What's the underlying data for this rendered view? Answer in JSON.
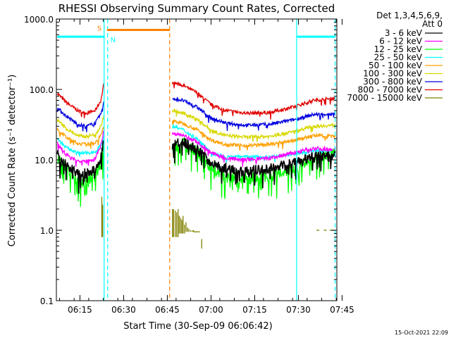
{
  "chart_data": {
    "type": "line",
    "title": "RHESSI Observing Summary Count Rates, Corrected",
    "xlabel": "Start Time (30-Sep-09 06:06:42)",
    "ylabel": "Corrected Count Rate (s⁻¹ detector⁻¹)",
    "y_scale": "log",
    "ylim": [
      0.1,
      1000
    ],
    "xlim_min": [
      6.7,
      103
    ],
    "x_ticks": [
      {
        "t": 14.8,
        "label": "06:15"
      },
      {
        "t": 29.8,
        "label": "06:30"
      },
      {
        "t": 44.8,
        "label": "06:45"
      },
      {
        "t": 59.8,
        "label": "07:00"
      },
      {
        "t": 74.8,
        "label": "07:15"
      },
      {
        "t": 89.8,
        "label": "07:30"
      },
      {
        "t": 104.8,
        "label": "07:45"
      }
    ],
    "y_ticks": [
      {
        "v": 0.1,
        "label": "0.1"
      },
      {
        "v": 1,
        "label": "1.0"
      },
      {
        "v": 10,
        "label": "10.0"
      },
      {
        "v": 100,
        "label": "100.0"
      },
      {
        "v": 1000,
        "label": "1000.0"
      }
    ],
    "legend_header": [
      "Det 1,3,4,5,6,9,",
      "Att 0"
    ],
    "legend_position": "right",
    "flag_labels": [
      {
        "text": "S",
        "color": "#ff8000"
      },
      {
        "text": "N",
        "color": "#00ffff"
      }
    ],
    "flags": [
      {
        "label_index": 0,
        "color": "#ff8000",
        "t": [
          24.1,
          45.6
        ],
        "y": 700
      },
      {
        "label_index": 1,
        "color": "#00ffff",
        "t": [
          7.0,
          23.3
        ],
        "y": 560
      },
      {
        "color": "#00ffff",
        "t": [
          89.2,
          102.5
        ],
        "y": 560
      }
    ],
    "vlines": [
      {
        "t": 23.1,
        "color": "#00ffff",
        "style": "solid"
      },
      {
        "t": 24.3,
        "color": "#00ffff",
        "style": "dash"
      },
      {
        "t": 45.6,
        "color": "#ff8000",
        "style": "dash"
      },
      {
        "t": 89.2,
        "color": "#00ffff",
        "style": "solid"
      },
      {
        "t": 102.4,
        "color": "#00ffff",
        "style": "dash"
      }
    ],
    "gap": [
      24.1,
      45.6
    ],
    "series": [
      {
        "name": "3 - 6 keV",
        "color": "#000000",
        "noise": 0.12,
        "seg1": [
          [
            7.0,
            12.0
          ],
          [
            10.0,
            8.5
          ],
          [
            14.0,
            6.5
          ],
          [
            17.0,
            6.5
          ],
          [
            20.0,
            7.0
          ],
          [
            22.0,
            11.0
          ],
          [
            23.0,
            20.0
          ]
        ],
        "seg2": [
          [
            46.5,
            16.0
          ],
          [
            50.0,
            18.0
          ],
          [
            55.0,
            14.0
          ],
          [
            60.0,
            9.0
          ],
          [
            65.0,
            7.5
          ],
          [
            72.0,
            7.0
          ],
          [
            80.0,
            7.5
          ],
          [
            88.0,
            9.0
          ],
          [
            95.0,
            11.0
          ],
          [
            102.5,
            11.5
          ]
        ]
      },
      {
        "name": "6 - 12 keV",
        "color": "#ff00ff",
        "noise": 0.05,
        "seg1": [
          [
            7.0,
            17.0
          ],
          [
            10.0,
            12.0
          ],
          [
            14.0,
            9.5
          ],
          [
            17.0,
            9.5
          ],
          [
            20.0,
            10.5
          ],
          [
            22.0,
            16.0
          ],
          [
            23.0,
            26.0
          ]
        ],
        "seg2": [
          [
            46.5,
            24.0
          ],
          [
            50.0,
            22.0
          ],
          [
            55.0,
            18.0
          ],
          [
            60.0,
            12.5
          ],
          [
            65.0,
            10.5
          ],
          [
            72.0,
            10.0
          ],
          [
            80.0,
            10.5
          ],
          [
            88.0,
            12.5
          ],
          [
            95.0,
            14.5
          ],
          [
            102.5,
            14.0
          ]
        ]
      },
      {
        "name": "12 - 25 keV",
        "color": "#00ff00",
        "noise": 0.15,
        "seg1": [
          [
            7.0,
            11.0
          ],
          [
            10.0,
            7.5
          ],
          [
            14.0,
            5.0
          ],
          [
            17.0,
            5.0
          ],
          [
            20.0,
            6.0
          ],
          [
            22.0,
            9.0
          ],
          [
            23.0,
            14.0
          ]
        ],
        "seg2": [
          [
            46.5,
            15.0
          ],
          [
            50.0,
            17.0
          ],
          [
            55.0,
            13.0
          ],
          [
            60.0,
            7.5
          ],
          [
            65.0,
            5.8
          ],
          [
            72.0,
            5.5
          ],
          [
            80.0,
            6.0
          ],
          [
            88.0,
            7.5
          ],
          [
            95.0,
            10.0
          ],
          [
            102.5,
            12.5
          ]
        ]
      },
      {
        "name": "25 - 50 keV",
        "color": "#00ffff",
        "noise": 0.04,
        "seg1": [
          [
            7.0,
            20.0
          ],
          [
            10.0,
            15.0
          ],
          [
            14.0,
            12.5
          ],
          [
            17.0,
            12.5
          ],
          [
            20.0,
            13.0
          ],
          [
            22.0,
            16.0
          ],
          [
            23.0,
            22.0
          ]
        ],
        "seg2": [
          [
            46.5,
            30.0
          ],
          [
            50.0,
            27.0
          ],
          [
            55.0,
            20.0
          ],
          [
            60.0,
            12.5
          ],
          [
            65.0,
            11.0
          ],
          [
            72.0,
            11.0
          ],
          [
            80.0,
            11.0
          ],
          [
            88.0,
            12.0
          ],
          [
            95.0,
            13.5
          ],
          [
            102.5,
            13.0
          ]
        ]
      },
      {
        "name": "50 - 100 keV",
        "color": "#ffa000",
        "noise": 0.04,
        "seg1": [
          [
            7.0,
            28.0
          ],
          [
            10.0,
            21.0
          ],
          [
            14.0,
            17.0
          ],
          [
            17.0,
            16.5
          ],
          [
            20.0,
            17.5
          ],
          [
            22.0,
            22.0
          ],
          [
            23.0,
            30.0
          ]
        ],
        "seg2": [
          [
            46.5,
            36.0
          ],
          [
            50.0,
            33.0
          ],
          [
            55.0,
            27.0
          ],
          [
            60.0,
            19.0
          ],
          [
            65.0,
            16.5
          ],
          [
            72.0,
            16.0
          ],
          [
            80.0,
            16.5
          ],
          [
            88.0,
            19.0
          ],
          [
            95.0,
            22.0
          ],
          [
            102.5,
            22.0
          ]
        ]
      },
      {
        "name": "100 - 300 keV",
        "color": "#d8d800",
        "noise": 0.04,
        "seg1": [
          [
            7.0,
            37.0
          ],
          [
            10.0,
            28.0
          ],
          [
            14.0,
            22.0
          ],
          [
            17.0,
            21.5
          ],
          [
            20.0,
            23.0
          ],
          [
            22.0,
            30.0
          ],
          [
            23.0,
            42.0
          ]
        ],
        "seg2": [
          [
            46.5,
            50.0
          ],
          [
            50.0,
            46.0
          ],
          [
            55.0,
            38.0
          ],
          [
            60.0,
            26.0
          ],
          [
            65.0,
            22.0
          ],
          [
            72.0,
            21.0
          ],
          [
            80.0,
            21.5
          ],
          [
            88.0,
            25.0
          ],
          [
            95.0,
            30.0
          ],
          [
            102.5,
            31.0
          ]
        ]
      },
      {
        "name": "300 - 800 keV",
        "color": "#0000e0",
        "noise": 0.04,
        "seg1": [
          [
            7.0,
            55.0
          ],
          [
            10.0,
            42.0
          ],
          [
            14.0,
            32.0
          ],
          [
            17.0,
            30.0
          ],
          [
            20.0,
            33.0
          ],
          [
            22.0,
            45.0
          ],
          [
            23.0,
            65.0
          ]
        ],
        "seg2": [
          [
            46.5,
            75.0
          ],
          [
            50.0,
            70.0
          ],
          [
            55.0,
            56.0
          ],
          [
            60.0,
            39.0
          ],
          [
            65.0,
            33.0
          ],
          [
            72.0,
            31.0
          ],
          [
            80.0,
            32.0
          ],
          [
            88.0,
            37.0
          ],
          [
            95.0,
            44.0
          ],
          [
            102.5,
            45.0
          ]
        ]
      },
      {
        "name": "800 - 7000 keV",
        "color": "#e00000",
        "noise": 0.04,
        "seg1": [
          [
            7.0,
            88.0
          ],
          [
            10.0,
            66.0
          ],
          [
            14.0,
            50.0
          ],
          [
            17.0,
            46.0
          ],
          [
            20.0,
            50.0
          ],
          [
            22.0,
            70.0
          ],
          [
            23.0,
            120.0
          ]
        ],
        "seg2": [
          [
            46.5,
            125.0
          ],
          [
            50.0,
            115.0
          ],
          [
            55.0,
            90.0
          ],
          [
            60.0,
            60.0
          ],
          [
            65.0,
            50.0
          ],
          [
            72.0,
            46.0
          ],
          [
            80.0,
            47.0
          ],
          [
            88.0,
            56.0
          ],
          [
            95.0,
            70.0
          ],
          [
            102.5,
            75.0
          ]
        ]
      },
      {
        "name": "7000 - 15000 keV",
        "color": "#808000",
        "style": "spikes",
        "spikes": [
          [
            22.3,
            0.8,
            3.0
          ],
          [
            22.6,
            0.8,
            2.3
          ],
          [
            46.6,
            0.8,
            2.0
          ],
          [
            46.9,
            0.8,
            2.0
          ],
          [
            47.5,
            0.8,
            1.9
          ],
          [
            48.0,
            0.8,
            1.8
          ],
          [
            48.5,
            0.8,
            2.0
          ],
          [
            48.9,
            0.9,
            1.6
          ],
          [
            49.4,
            0.9,
            1.5
          ],
          [
            49.8,
            0.9,
            1.4
          ],
          [
            50.2,
            0.9,
            1.6
          ],
          [
            50.7,
            0.9,
            1.2
          ],
          [
            51.2,
            0.95,
            1.3
          ],
          [
            51.7,
            0.95,
            1.1
          ],
          [
            52.2,
            0.95,
            1.05
          ],
          [
            52.8,
            0.95,
            1.0
          ],
          [
            53.4,
            0.95,
            1.0
          ],
          [
            53.8,
            0.95,
            1.0
          ]
        ],
        "small": [
          [
            56.6,
            0.55,
            0.75
          ],
          [
            96.5,
            1.0,
            1.0
          ],
          [
            99.0,
            1.0,
            1.0
          ],
          [
            101.0,
            1.0,
            1.0
          ],
          [
            101.8,
            1.0,
            1.0
          ]
        ]
      }
    ]
  },
  "footer": {
    "timestamp": "15-Oct-2021 22:09"
  }
}
